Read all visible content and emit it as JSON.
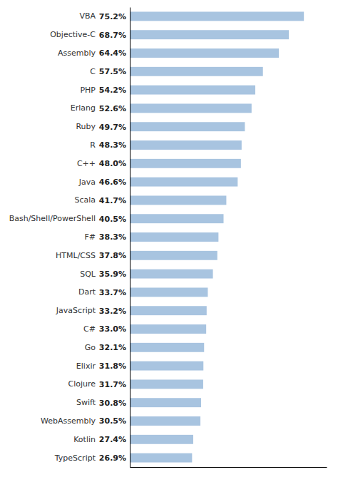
{
  "chart_data": {
    "type": "bar",
    "orientation": "horizontal",
    "categories": [
      "VBA",
      "Objective-C",
      "Assembly",
      "C",
      "PHP",
      "Erlang",
      "Ruby",
      "R",
      "C++",
      "Java",
      "Scala",
      "Bash/Shell/PowerShell",
      "F#",
      "HTML/CSS",
      "SQL",
      "Dart",
      "JavaScript",
      "C#",
      "Go",
      "Elixir",
      "Clojure",
      "Swift",
      "WebAssembly",
      "Kotlin",
      "TypeScript"
    ],
    "values": [
      75.2,
      68.7,
      64.4,
      57.5,
      54.2,
      52.6,
      49.7,
      48.3,
      48.0,
      46.6,
      41.7,
      40.5,
      38.3,
      37.8,
      35.9,
      33.7,
      33.2,
      33.0,
      32.1,
      31.8,
      31.7,
      30.8,
      30.5,
      27.4,
      26.9
    ],
    "value_labels": [
      "75.2%",
      "68.7%",
      "64.4%",
      "57.5%",
      "54.2%",
      "52.6%",
      "49.7%",
      "48.3%",
      "48.0%",
      "46.6%",
      "41.7%",
      "40.5%",
      "38.3%",
      "37.8%",
      "35.9%",
      "33.7%",
      "33.2%",
      "33.0%",
      "32.1%",
      "31.8%",
      "31.7%",
      "30.8%",
      "30.5%",
      "27.4%",
      "26.9%"
    ],
    "data_labels": true,
    "color": "#a8c4e0",
    "xlim": [
      0,
      85
    ],
    "tick_labels": "y",
    "grid": false
  }
}
